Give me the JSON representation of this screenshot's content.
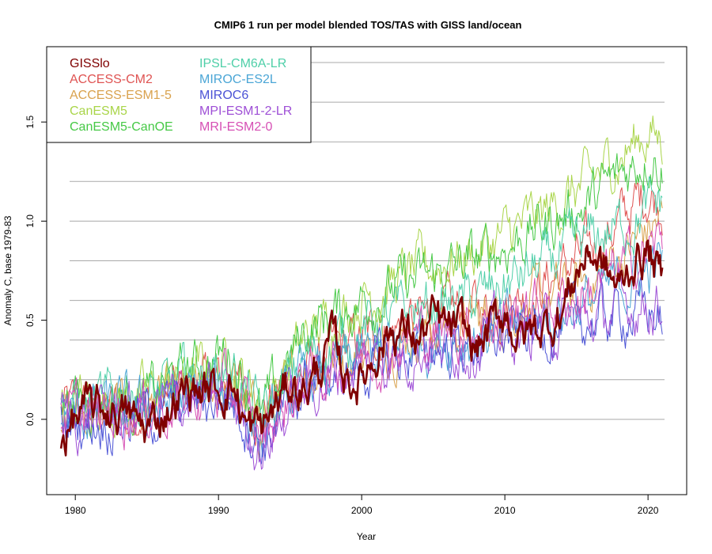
{
  "chart_data": {
    "type": "line",
    "title": "CMIP6 1 run per model blended TOS/TAS with GISS land/ocean",
    "xlabel": "Year",
    "ylabel": "Anomaly C, base 1979-83",
    "xlim": [
      1978,
      2022.7
    ],
    "ylim": [
      -0.38,
      1.88
    ],
    "x_ticks": [
      {
        "value": 1980,
        "label": "1980"
      },
      {
        "value": 1990,
        "label": "1990"
      },
      {
        "value": 2000,
        "label": "2000"
      },
      {
        "value": 2010,
        "label": "2010"
      },
      {
        "value": 2020,
        "label": "2020"
      }
    ],
    "y_ticks": [
      {
        "value": 0.0,
        "label": "0.0"
      },
      {
        "value": 0.5,
        "label": "0.5"
      },
      {
        "value": 1.0,
        "label": "1.0"
      },
      {
        "value": 1.5,
        "label": "1.5"
      }
    ],
    "gridlines_y": [
      0.0,
      0.2,
      0.4,
      0.6,
      0.8,
      1.0,
      1.2,
      1.4,
      1.6,
      1.8
    ],
    "legend_position": "top-left",
    "x_range": [
      1979.0,
      2021.0
    ],
    "series": [
      {
        "name": "ACCESS-CM2",
        "color": "#df5352",
        "values": [
          [
            1979,
            0.05
          ],
          [
            1982,
            0.05
          ],
          [
            1985,
            0.08
          ],
          [
            1988,
            0.15
          ],
          [
            1991,
            0.2
          ],
          [
            1993,
            0.05
          ],
          [
            1996,
            0.25
          ],
          [
            2000,
            0.4
          ],
          [
            2004,
            0.5
          ],
          [
            2008,
            0.55
          ],
          [
            2012,
            0.65
          ],
          [
            2016,
            0.85
          ],
          [
            2020,
            1.15
          ],
          [
            2021,
            1.1
          ]
        ]
      },
      {
        "name": "ACCESS-ESM1-5",
        "color": "#d9a24e",
        "values": [
          [
            1979,
            0.02
          ],
          [
            1982,
            0.03
          ],
          [
            1985,
            0.05
          ],
          [
            1988,
            0.12
          ],
          [
            1991,
            0.15
          ],
          [
            1993,
            -0.05
          ],
          [
            1996,
            0.25
          ],
          [
            2000,
            0.35
          ],
          [
            2004,
            0.45
          ],
          [
            2008,
            0.5
          ],
          [
            2012,
            0.58
          ],
          [
            2016,
            0.7
          ],
          [
            2020,
            0.95
          ],
          [
            2021,
            1.0
          ]
        ]
      },
      {
        "name": "CanESM5",
        "color": "#a9d549",
        "values": [
          [
            1979,
            0.08
          ],
          [
            1982,
            0.1
          ],
          [
            1985,
            0.12
          ],
          [
            1988,
            0.22
          ],
          [
            1991,
            0.3
          ],
          [
            1993,
            0.05
          ],
          [
            1996,
            0.4
          ],
          [
            2000,
            0.62
          ],
          [
            2004,
            0.75
          ],
          [
            2008,
            0.85
          ],
          [
            2012,
            1.0
          ],
          [
            2016,
            1.2
          ],
          [
            2020,
            1.45
          ],
          [
            2021,
            1.4
          ]
        ]
      },
      {
        "name": "CanESM5-CanOE",
        "color": "#46c946",
        "values": [
          [
            1979,
            0.1
          ],
          [
            1982,
            0.12
          ],
          [
            1985,
            0.1
          ],
          [
            1988,
            0.25
          ],
          [
            1991,
            0.35
          ],
          [
            1993,
            0.0
          ],
          [
            1996,
            0.45
          ],
          [
            2000,
            0.6
          ],
          [
            2004,
            0.7
          ],
          [
            2008,
            0.8
          ],
          [
            2012,
            0.95
          ],
          [
            2016,
            1.1
          ],
          [
            2020,
            1.35
          ],
          [
            2021,
            1.3
          ]
        ]
      },
      {
        "name": "IPSL-CM6A-LR",
        "color": "#4ecfa8",
        "values": [
          [
            1979,
            0.05
          ],
          [
            1982,
            0.08
          ],
          [
            1985,
            0.1
          ],
          [
            1988,
            0.2
          ],
          [
            1991,
            0.25
          ],
          [
            1993,
            0.0
          ],
          [
            1996,
            0.3
          ],
          [
            2000,
            0.45
          ],
          [
            2004,
            0.55
          ],
          [
            2008,
            0.6
          ],
          [
            2012,
            0.75
          ],
          [
            2016,
            0.9
          ],
          [
            2020,
            1.05
          ],
          [
            2021,
            1.1
          ]
        ]
      },
      {
        "name": "MIROC-ES2L",
        "color": "#4ba6d6",
        "values": [
          [
            1979,
            0.0
          ],
          [
            1982,
            0.05
          ],
          [
            1985,
            0.05
          ],
          [
            1988,
            0.1
          ],
          [
            1991,
            0.15
          ],
          [
            1993,
            -0.1
          ],
          [
            1996,
            0.2
          ],
          [
            2000,
            0.3
          ],
          [
            2004,
            0.4
          ],
          [
            2008,
            0.42
          ],
          [
            2012,
            0.5
          ],
          [
            2016,
            0.6
          ],
          [
            2020,
            0.75
          ],
          [
            2021,
            0.8
          ]
        ]
      },
      {
        "name": "MIROC6",
        "color": "#4b53d6",
        "values": [
          [
            1979,
            -0.02
          ],
          [
            1982,
            0.0
          ],
          [
            1985,
            0.02
          ],
          [
            1988,
            0.08
          ],
          [
            1991,
            0.12
          ],
          [
            1993,
            -0.12
          ],
          [
            1996,
            0.18
          ],
          [
            2000,
            0.25
          ],
          [
            2004,
            0.35
          ],
          [
            2008,
            0.38
          ],
          [
            2012,
            0.45
          ],
          [
            2016,
            0.5
          ],
          [
            2020,
            0.55
          ],
          [
            2021,
            0.5
          ]
        ]
      },
      {
        "name": "MPI-ESM1-2-LR",
        "color": "#9e4fd6",
        "values": [
          [
            1979,
            0.0
          ],
          [
            1982,
            0.02
          ],
          [
            1985,
            0.05
          ],
          [
            1988,
            0.1
          ],
          [
            1991,
            0.1
          ],
          [
            1993,
            -0.15
          ],
          [
            1996,
            0.15
          ],
          [
            2000,
            0.28
          ],
          [
            2004,
            0.35
          ],
          [
            2008,
            0.4
          ],
          [
            2012,
            0.45
          ],
          [
            2016,
            0.5
          ],
          [
            2020,
            0.6
          ],
          [
            2021,
            0.55
          ]
        ]
      },
      {
        "name": "MRI-ESM2-0",
        "color": "#d64fb4",
        "values": [
          [
            1979,
            0.0
          ],
          [
            1982,
            0.03
          ],
          [
            1985,
            0.05
          ],
          [
            1988,
            0.1
          ],
          [
            1991,
            0.15
          ],
          [
            1993,
            -0.08
          ],
          [
            1996,
            0.2
          ],
          [
            2000,
            0.32
          ],
          [
            2004,
            0.42
          ],
          [
            2008,
            0.48
          ],
          [
            2012,
            0.55
          ],
          [
            2016,
            0.65
          ],
          [
            2020,
            0.85
          ],
          [
            2021,
            0.9
          ]
        ]
      },
      {
        "name": "GISSlo",
        "color": "#7f0000",
        "emphasis": true,
        "values": [
          [
            1979,
            -0.1
          ],
          [
            1980,
            0.0
          ],
          [
            1981,
            0.05
          ],
          [
            1983,
            0.05
          ],
          [
            1985,
            -0.05
          ],
          [
            1987,
            0.1
          ],
          [
            1988,
            0.15
          ],
          [
            1990,
            0.15
          ],
          [
            1991,
            0.18
          ],
          [
            1992,
            -0.05
          ],
          [
            1993,
            -0.05
          ],
          [
            1995,
            0.18
          ],
          [
            1996,
            0.15
          ],
          [
            1997,
            0.25
          ],
          [
            1998,
            0.4
          ],
          [
            1999,
            0.2
          ],
          [
            2000,
            0.2
          ],
          [
            2001,
            0.35
          ],
          [
            2002,
            0.45
          ],
          [
            2003,
            0.45
          ],
          [
            2004,
            0.4
          ],
          [
            2005,
            0.5
          ],
          [
            2006,
            0.45
          ],
          [
            2007,
            0.45
          ],
          [
            2008,
            0.35
          ],
          [
            2009,
            0.45
          ],
          [
            2010,
            0.55
          ],
          [
            2011,
            0.4
          ],
          [
            2012,
            0.45
          ],
          [
            2013,
            0.48
          ],
          [
            2014,
            0.55
          ],
          [
            2015,
            0.75
          ],
          [
            2016,
            0.85
          ],
          [
            2017,
            0.75
          ],
          [
            2018,
            0.65
          ],
          [
            2019,
            0.8
          ],
          [
            2020,
            0.85
          ],
          [
            2021,
            0.7
          ]
        ]
      }
    ]
  }
}
